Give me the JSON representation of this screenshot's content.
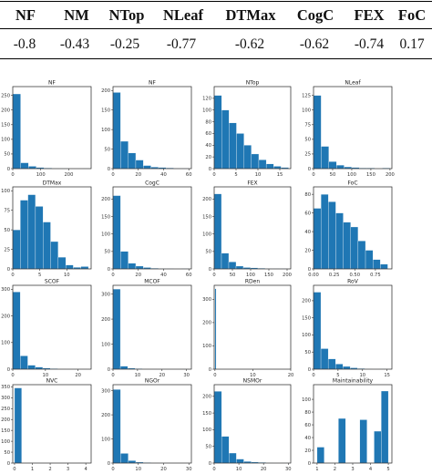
{
  "table": {
    "headers": [
      "NF",
      "NM",
      "NTop",
      "NLeaf",
      "DTMax",
      "CogC",
      "FEX",
      "FoC"
    ],
    "values": [
      "-0.8",
      "-0.43",
      "-0.25",
      "-0.77",
      "-0.62",
      "-0.62",
      "-0.74",
      "0.17"
    ]
  },
  "chart_data": [
    {
      "type": "bar",
      "title": "NF",
      "x": [
        0,
        28,
        56,
        84,
        112,
        140,
        168,
        196,
        224,
        252
      ],
      "values": [
        255,
        20,
        8,
        4,
        2,
        1,
        1,
        0,
        0,
        1
      ],
      "xlim": [
        0,
        280
      ],
      "ylim": [
        0,
        280
      ],
      "xticks": [
        0,
        100,
        200
      ],
      "yticks": [
        0,
        50,
        100,
        150,
        200,
        250
      ]
    },
    {
      "type": "bar",
      "title": "NF",
      "x": [
        0,
        6,
        12,
        18,
        24,
        30,
        36,
        42,
        48,
        54
      ],
      "values": [
        195,
        70,
        40,
        22,
        8,
        4,
        3,
        2,
        1,
        1
      ],
      "xlim": [
        0,
        62
      ],
      "ylim": [
        0,
        210
      ],
      "xticks": [
        0,
        20,
        40,
        60
      ],
      "yticks": [
        0,
        50,
        100,
        150,
        200
      ]
    },
    {
      "type": "bar",
      "title": "NTop",
      "x": [
        0,
        1.7,
        3.4,
        5.1,
        6.8,
        8.5,
        10.2,
        11.9,
        13.6,
        15.3
      ],
      "values": [
        125,
        100,
        78,
        60,
        40,
        25,
        15,
        8,
        4,
        2
      ],
      "xlim": [
        0,
        17.5
      ],
      "ylim": [
        0,
        140
      ],
      "xticks": [
        0,
        5,
        10,
        15
      ],
      "yticks": [
        0,
        20,
        40,
        60,
        80,
        100,
        120
      ]
    },
    {
      "type": "bar",
      "title": "NLeaf",
      "x": [
        0,
        20,
        40,
        60,
        80,
        100,
        120,
        140,
        160,
        180
      ],
      "values": [
        125,
        38,
        12,
        6,
        3,
        2,
        1,
        1,
        0,
        1
      ],
      "xlim": [
        0,
        205
      ],
      "ylim": [
        0,
        140
      ],
      "xticks": [
        0,
        50,
        100,
        150,
        200
      ],
      "yticks": [
        0,
        25,
        50,
        75,
        100,
        125
      ]
    },
    {
      "type": "bar",
      "title": "DTMax",
      "x": [
        0,
        1.4,
        2.8,
        4.2,
        5.6,
        7,
        8.4,
        9.8,
        11.2,
        12.6
      ],
      "values": [
        50,
        88,
        95,
        80,
        60,
        35,
        15,
        5,
        2,
        3
      ],
      "xlim": [
        0,
        14.5
      ],
      "ylim": [
        0,
        105
      ],
      "xticks": [
        0,
        5,
        10
      ],
      "yticks": [
        0,
        25,
        50,
        75,
        100
      ]
    },
    {
      "type": "bar",
      "title": "CogC",
      "x": [
        0,
        6,
        12,
        18,
        24,
        30,
        36,
        42,
        48,
        54
      ],
      "values": [
        210,
        50,
        16,
        8,
        4,
        2,
        1,
        1,
        0,
        1
      ],
      "xlim": [
        0,
        62
      ],
      "ylim": [
        0,
        235
      ],
      "xticks": [
        0,
        20,
        40,
        60
      ],
      "yticks": [
        0,
        50,
        100,
        150,
        200
      ]
    },
    {
      "type": "bar",
      "title": "FEX",
      "x": [
        0,
        20,
        40,
        60,
        80,
        100,
        120,
        140,
        160,
        180
      ],
      "values": [
        215,
        45,
        20,
        8,
        4,
        3,
        2,
        1,
        1,
        1
      ],
      "xlim": [
        0,
        210
      ],
      "ylim": [
        0,
        235
      ],
      "xticks": [
        0,
        50,
        100,
        150,
        200
      ],
      "yticks": [
        0,
        50,
        100,
        150,
        200
      ]
    },
    {
      "type": "bar",
      "title": "FoC",
      "x": [
        0,
        0.09,
        0.18,
        0.27,
        0.36,
        0.45,
        0.54,
        0.63,
        0.72,
        0.81
      ],
      "values": [
        65,
        80,
        72,
        60,
        50,
        45,
        30,
        20,
        10,
        5
      ],
      "xlim": [
        0,
        0.95
      ],
      "ylim": [
        0,
        88
      ],
      "xticks": [
        0,
        0.25,
        0.5,
        0.75
      ],
      "xticklabels": [
        "0.00",
        "0.25",
        "0.50",
        "0.75"
      ],
      "yticks": [
        0,
        20,
        40,
        60,
        80
      ]
    },
    {
      "type": "bar",
      "title": "SCOF",
      "x": [
        0,
        2.3,
        4.6,
        6.9,
        9.2,
        11.5,
        13.8,
        16.1,
        18.4,
        20.7
      ],
      "values": [
        290,
        50,
        15,
        8,
        4,
        2,
        1,
        0,
        0,
        1
      ],
      "xlim": [
        0,
        24
      ],
      "ylim": [
        0,
        315
      ],
      "xticks": [
        0,
        10,
        20
      ],
      "yticks": [
        0,
        100,
        200,
        300
      ]
    },
    {
      "type": "bar",
      "title": "MCOF",
      "x": [
        0,
        3,
        6,
        9,
        12,
        15,
        18,
        21,
        24,
        27
      ],
      "values": [
        320,
        12,
        4,
        2,
        1,
        1,
        0,
        0,
        0,
        1
      ],
      "xlim": [
        0,
        32
      ],
      "ylim": [
        0,
        335
      ],
      "xticks": [
        0,
        10,
        20,
        30
      ],
      "yticks": [
        0,
        100,
        200,
        300
      ]
    },
    {
      "type": "bar",
      "title": "RDen",
      "x": [
        0,
        0.3,
        0.6,
        0.9,
        1.2,
        1.5,
        1.8,
        2.1,
        2.4,
        2.7
      ],
      "values": [
        345,
        0,
        0,
        0,
        0,
        0,
        0,
        0,
        0,
        0
      ],
      "xlim": [
        -0.2,
        20
      ],
      "ylim": [
        0,
        360
      ],
      "xticks": [
        0,
        10,
        20
      ],
      "yticks": [
        0,
        100,
        200,
        300
      ]
    },
    {
      "type": "bar",
      "title": "RoV",
      "x": [
        0,
        1.5,
        3,
        4.5,
        6,
        7.5,
        9,
        10.5,
        12,
        13.5
      ],
      "values": [
        225,
        60,
        30,
        15,
        8,
        4,
        2,
        1,
        0,
        1
      ],
      "xlim": [
        0,
        16
      ],
      "ylim": [
        0,
        245
      ],
      "xticks": [
        0,
        5,
        10,
        15
      ],
      "yticks": [
        0,
        50,
        100,
        150,
        200
      ]
    },
    {
      "type": "bar",
      "title": "NVC",
      "x": [
        0,
        0.4,
        0.8,
        1.2,
        1.6,
        2,
        2.4,
        2.8,
        3.2,
        3.6
      ],
      "values": [
        345,
        0,
        0,
        0,
        0,
        0,
        0,
        0,
        0,
        1
      ],
      "xlim": [
        -0.1,
        4.3
      ],
      "ylim": [
        0,
        360
      ],
      "xticks": [
        0,
        1,
        2,
        3,
        4
      ],
      "yticks": [
        0,
        50,
        100,
        150,
        200,
        250,
        300,
        350
      ]
    },
    {
      "type": "bar",
      "title": "NGOr",
      "x": [
        0,
        3,
        6,
        9,
        12,
        15,
        18,
        21,
        24,
        27
      ],
      "values": [
        305,
        40,
        10,
        4,
        2,
        1,
        0,
        0,
        0,
        1
      ],
      "xlim": [
        0,
        31
      ],
      "ylim": [
        0,
        325
      ],
      "xticks": [
        0,
        10,
        20,
        30
      ],
      "yticks": [
        0,
        100,
        200,
        300
      ]
    },
    {
      "type": "bar",
      "title": "NSMOr",
      "x": [
        0,
        3,
        6,
        9,
        12,
        15,
        18,
        21,
        24,
        27
      ],
      "values": [
        215,
        80,
        30,
        12,
        5,
        3,
        2,
        1,
        0,
        1
      ],
      "xlim": [
        0,
        31
      ],
      "ylim": [
        0,
        235
      ],
      "xticks": [
        0,
        10,
        20,
        30
      ],
      "yticks": [
        0,
        50,
        100,
        150,
        200
      ]
    },
    {
      "type": "bar",
      "title": "Maintainability",
      "x": [
        1,
        1.4,
        1.8,
        2.2,
        2.6,
        3,
        3.4,
        3.8,
        4.2,
        4.6
      ],
      "values": [
        25,
        0,
        0,
        70,
        0,
        0,
        68,
        0,
        50,
        113
      ],
      "xlim": [
        0.8,
        5.2
      ],
      "ylim": [
        0,
        123
      ],
      "xticks": [
        1,
        2,
        3,
        4,
        5
      ],
      "yticks": [
        0,
        20,
        40,
        60,
        80,
        100
      ]
    }
  ]
}
